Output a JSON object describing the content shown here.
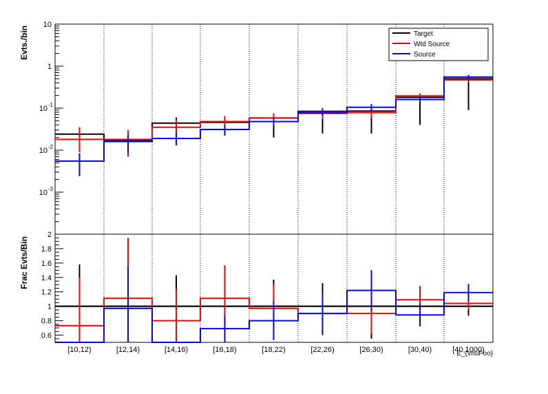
{
  "chart_data": [
    {
      "type": "step-histogram",
      "ylabel": "Evts./bin",
      "yscale": "log",
      "ylim": [
        0.0001,
        10
      ],
      "ytick_labels": [
        "10",
        "1",
        "10^-1",
        "10^-2",
        "10^-3"
      ],
      "categories": [
        "[10,12)",
        "[12,14)",
        "[14,16)",
        "[16,18)",
        "[18,22)",
        "[22,26)",
        "[26,30)",
        "[30,40)",
        "[40,1000)"
      ],
      "legend": {
        "placement": "top-right",
        "entries": [
          "Target",
          "Wtd Source",
          "Source"
        ]
      },
      "series": [
        {
          "name": "Target",
          "color": "#000000",
          "values": [
            0.024,
            0.017,
            0.044,
            0.046,
            0.058,
            0.084,
            0.085,
            0.18,
            0.5
          ],
          "err_low": [
            0.015,
            0.01,
            0.025,
            0.023,
            0.02,
            0.025,
            0.025,
            0.04,
            0.09
          ],
          "err_high": [
            0.035,
            0.025,
            0.06,
            0.062,
            0.075,
            0.1,
            0.105,
            0.21,
            0.55
          ]
        },
        {
          "name": "Wtd Source",
          "color": "#ff0000",
          "values": [
            0.018,
            0.018,
            0.035,
            0.048,
            0.058,
            0.075,
            0.078,
            0.195,
            0.47
          ],
          "err_low": [
            0.009,
            0.007,
            0.018,
            0.028,
            0.04,
            0.055,
            0.058,
            0.16,
            0.42
          ],
          "err_high": [
            0.035,
            0.03,
            0.054,
            0.065,
            0.075,
            0.095,
            0.098,
            0.225,
            0.51
          ]
        },
        {
          "name": "Source",
          "color": "#0000ff",
          "values": [
            0.0055,
            0.016,
            0.019,
            0.031,
            0.048,
            0.077,
            0.105,
            0.16,
            0.55
          ],
          "err_low": [
            0.0024,
            0.009,
            0.013,
            0.022,
            0.037,
            0.065,
            0.085,
            0.13,
            0.46
          ],
          "err_high": [
            0.0085,
            0.022,
            0.026,
            0.04,
            0.06,
            0.091,
            0.125,
            0.19,
            0.62
          ]
        }
      ]
    },
    {
      "type": "step-histogram",
      "ylabel": "Frac Evts/Bin",
      "ylim": [
        0.5,
        2.0
      ],
      "ytick_labels": [
        "2",
        "1.8",
        "1.6",
        "1.4",
        "1.2",
        "1",
        "0.8",
        "0.6"
      ],
      "xlabel": "E_{\\muFoo}",
      "categories": [
        "[10,12)",
        "[12,14)",
        "[14,16)",
        "[16,18)",
        "[18,22)",
        "[22,26)",
        "[26,30)",
        "[30,40)",
        "[40,1000)"
      ],
      "reference_line": 1.0,
      "series": [
        {
          "name": "Target",
          "color": "#000000",
          "values": [
            1.0,
            1.0,
            1.0,
            1.0,
            1.0,
            1.0,
            1.0,
            1.0,
            1.0
          ],
          "err_low": [
            0.5,
            0.5,
            0.55,
            0.5,
            0.6,
            0.65,
            0.55,
            0.85,
            0.87
          ],
          "err_high": [
            1.58,
            1.5,
            1.43,
            1.5,
            1.37,
            1.32,
            1.45,
            1.15,
            1.13
          ]
        },
        {
          "name": "Wtd Source",
          "color": "#ff0000",
          "values": [
            0.73,
            1.11,
            0.8,
            1.11,
            0.97,
            0.9,
            0.9,
            1.09,
            1.04
          ],
          "err_low": [
            0.5,
            0.5,
            0.5,
            0.5,
            0.6,
            0.6,
            0.62,
            0.92,
            0.95
          ],
          "err_high": [
            1.4,
            1.95,
            1.24,
            1.57,
            1.3,
            1.18,
            1.2,
            1.28,
            1.13
          ]
        },
        {
          "name": "Source",
          "color": "#0000ff",
          "values": [
            0.5,
            0.97,
            0.5,
            0.69,
            0.8,
            0.9,
            1.22,
            0.88,
            1.19
          ],
          "err_low": [
            0.5,
            0.5,
            0.5,
            0.5,
            0.53,
            0.6,
            0.93,
            0.72,
            1.06
          ],
          "err_high": [
            0.5,
            1.55,
            0.5,
            0.88,
            1.07,
            1.2,
            1.5,
            1.04,
            1.31
          ]
        }
      ]
    }
  ]
}
